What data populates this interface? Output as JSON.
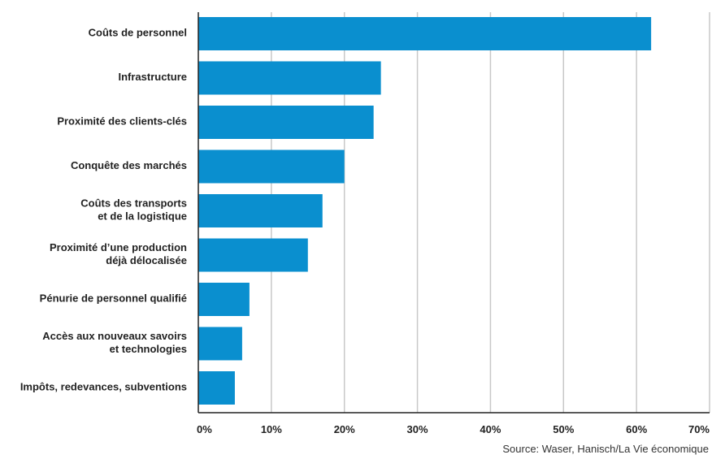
{
  "chart_data": {
    "type": "bar",
    "orientation": "horizontal",
    "categories": [
      [
        "Coûts de personnel"
      ],
      [
        "Infrastructure"
      ],
      [
        "Proximité des clients-clés"
      ],
      [
        "Conquête des marchés"
      ],
      [
        "Coûts des transports",
        "et de la logistique"
      ],
      [
        "Proximité d’une production",
        "déjà délocalisée"
      ],
      [
        "Pénurie de personnel qualifié"
      ],
      [
        "Accès aux nouveaux savoirs",
        "et technologies"
      ],
      [
        "Impôts, redevances, subventions"
      ]
    ],
    "values": [
      62,
      25,
      24,
      20,
      17,
      15,
      7,
      6,
      5
    ],
    "xlim": [
      0,
      70
    ],
    "xticks": [
      0,
      10,
      20,
      30,
      40,
      50,
      60,
      70
    ],
    "xtick_labels": [
      "0%",
      "10%",
      "20%",
      "30%",
      "40%",
      "50%",
      "60%",
      "70%"
    ],
    "grid": true,
    "bar_color": "#0a8fcf",
    "grid_color": "#c8c8c8",
    "axis_color": "#222222"
  },
  "source": "Source: Waser, Hanisch/La Vie économique"
}
